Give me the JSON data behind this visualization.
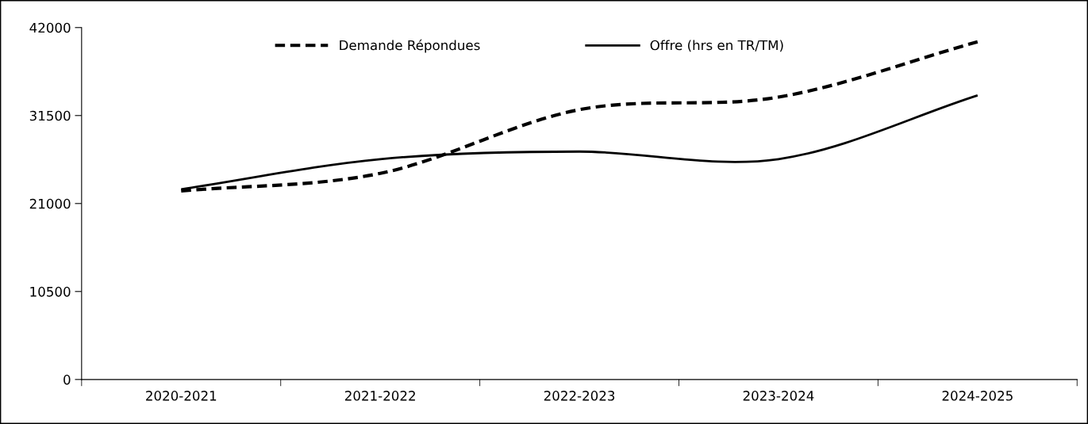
{
  "chart_data": {
    "type": "line",
    "categories": [
      "2020-2021",
      "2021-2022",
      "2022-2023",
      "2023-2024",
      "2024-2025"
    ],
    "series": [
      {
        "name": "Demande Répondues",
        "color": "#000000",
        "line_style": "dashed",
        "values": [
          22500,
          24600,
          32200,
          33700,
          40300
        ]
      },
      {
        "name": "Offre (hrs en TR/TM)",
        "color": "#000000",
        "line_style": "solid",
        "values": [
          22700,
          26300,
          27200,
          26300,
          33900
        ]
      }
    ],
    "ylim": [
      0,
      42000
    ],
    "yticks": [
      0,
      10500,
      21000,
      31500,
      42000
    ],
    "grid": false,
    "legend": "top",
    "marker": "none"
  }
}
